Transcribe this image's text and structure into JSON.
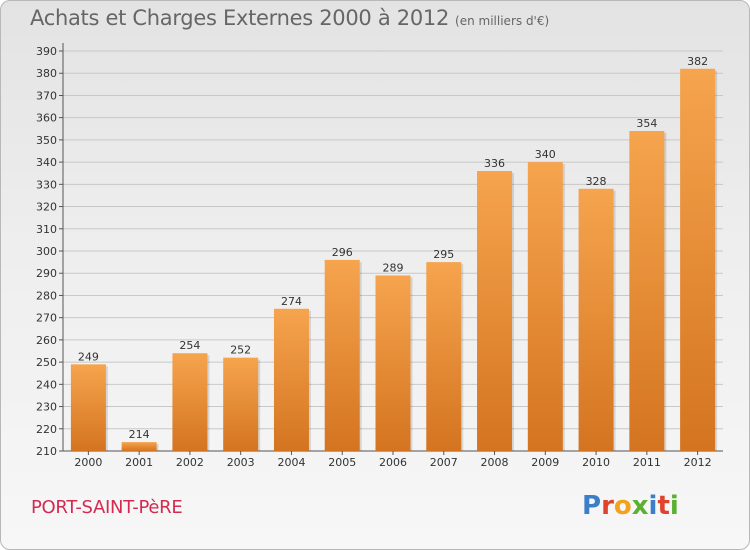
{
  "header": {
    "title": "Achats et Charges Externes 2000 à 2012",
    "unit": "(en milliers d'€)"
  },
  "footer": {
    "commune": "PORT-SAINT-PèRE",
    "logo": "Proxiti"
  },
  "colors": {
    "bar_light": "#f6a44e",
    "bar_dark": "#d47420",
    "commune_text": "#d42a50",
    "grid": "#c8c8c8"
  },
  "chart_data": {
    "type": "bar",
    "title": "Achats et Charges Externes 2000 à 2012",
    "subtitle": "(en milliers d'€)",
    "xlabel": "",
    "ylabel": "",
    "categories": [
      "2000",
      "2001",
      "2002",
      "2003",
      "2004",
      "2005",
      "2006",
      "2007",
      "2008",
      "2009",
      "2010",
      "2011",
      "2012"
    ],
    "values": [
      249,
      214,
      254,
      252,
      274,
      296,
      289,
      295,
      336,
      340,
      328,
      354,
      382
    ],
    "ylim": [
      210,
      390
    ],
    "yticks": [
      210,
      220,
      230,
      240,
      250,
      260,
      270,
      280,
      290,
      300,
      310,
      320,
      330,
      340,
      350,
      360,
      370,
      380,
      390
    ],
    "grid": true,
    "legend": "none"
  }
}
